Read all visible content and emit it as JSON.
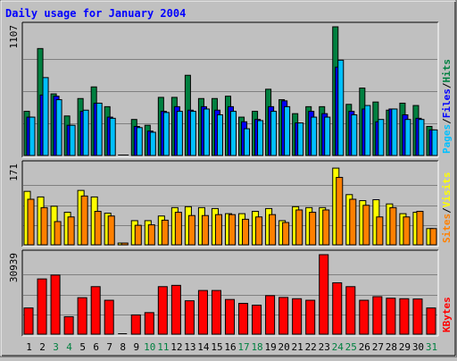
{
  "chart_data": {
    "type": "bar",
    "title": "Daily usage for January 2004",
    "categories": [
      "1",
      "2",
      "3",
      "4",
      "5",
      "6",
      "7",
      "8",
      "9",
      "10",
      "11",
      "12",
      "13",
      "14",
      "15",
      "16",
      "17",
      "18",
      "19",
      "20",
      "21",
      "22",
      "23",
      "24",
      "25",
      "26",
      "27",
      "28",
      "29",
      "30",
      "31"
    ],
    "weekend_days": [
      "3",
      "4",
      "10",
      "11",
      "17",
      "18",
      "24",
      "25",
      "31"
    ],
    "panels": [
      {
        "id": "hits",
        "ymax_label": "1107",
        "ylim": [
          0,
          1107
        ],
        "legend": [
          {
            "text": "Pages",
            "color": "#00c0ff"
          },
          {
            "text": "Files",
            "color": "#0000ff"
          },
          {
            "text": "Hits",
            "color": "#008040"
          }
        ],
        "series": [
          {
            "name": "Hits",
            "color": "#008040",
            "values": [
              380,
              920,
              530,
              340,
              490,
              590,
              420,
              0,
              310,
              260,
              500,
              500,
              690,
              490,
              490,
              510,
              330,
              380,
              570,
              480,
              360,
              420,
              420,
              1107,
              440,
              580,
              460,
              390,
              450,
              430,
              250
            ]
          },
          {
            "name": "Files",
            "color": "#0000ff",
            "values": [
              330,
              520,
              510,
              260,
              380,
              450,
              330,
              0,
              250,
              210,
              380,
              420,
              390,
              420,
              390,
              420,
              290,
              310,
              420,
              470,
              280,
              380,
              360,
              760,
              380,
              400,
              290,
              400,
              350,
              320,
              220
            ]
          },
          {
            "name": "Pages",
            "color": "#00c0ff",
            "values": [
              330,
              670,
              480,
              260,
              390,
              450,
              320,
              0,
              240,
              200,
              370,
              380,
              380,
              400,
              350,
              380,
              230,
              300,
              380,
              420,
              280,
              330,
              330,
              820,
              350,
              430,
              310,
              400,
              310,
              310,
              220
            ]
          }
        ]
      },
      {
        "id": "visits",
        "ymax_label": "171",
        "ylim": [
          0,
          171
        ],
        "legend": [
          {
            "text": "Sites",
            "color": "#ff8000"
          },
          {
            "text": "Visits",
            "color": "#ffff00"
          }
        ],
        "series": [
          {
            "name": "Visits",
            "color": "#ffff00",
            "values": [
              115,
              103,
              83,
              70,
              117,
              103,
              68,
              3,
              52,
              52,
              62,
              80,
              82,
              80,
              78,
              67,
              67,
              72,
              78,
              52,
              82,
              80,
              80,
              165,
              108,
              95,
              97,
              88,
              67,
              70,
              35
            ]
          },
          {
            "name": "Sites",
            "color": "#ff8000",
            "values": [
              98,
              80,
              50,
              60,
              105,
              72,
              62,
              3,
              42,
              43,
              53,
              70,
              63,
              63,
              65,
              65,
              55,
              60,
              65,
              48,
              75,
              70,
              75,
              145,
              98,
              85,
              60,
              80,
              60,
              72,
              35
            ]
          }
        ]
      },
      {
        "id": "kbytes",
        "ymax_label": "30939",
        "ylim": [
          0,
          30939
        ],
        "legend": [
          {
            "text": "KBytes",
            "color": "#ff0000"
          }
        ],
        "series": [
          {
            "name": "KBytes",
            "color": "#ff0000",
            "values": [
              10200,
              21500,
              23000,
              6800,
              14200,
              18500,
              13200,
              0,
              7500,
              8400,
              18500,
              19000,
              13000,
              17000,
              17000,
              13500,
              12000,
              11300,
              15000,
              14300,
              13800,
              13200,
              30939,
              20000,
              18500,
              13200,
              14600,
              14000,
              13800,
              13700,
              10200
            ]
          }
        ]
      }
    ]
  },
  "colors": {
    "background": "#c0c0c0",
    "plot_background": "#c0c0c0",
    "title": "#0000ff",
    "weekday_label": "#000000",
    "weekend_label": "#008040"
  }
}
